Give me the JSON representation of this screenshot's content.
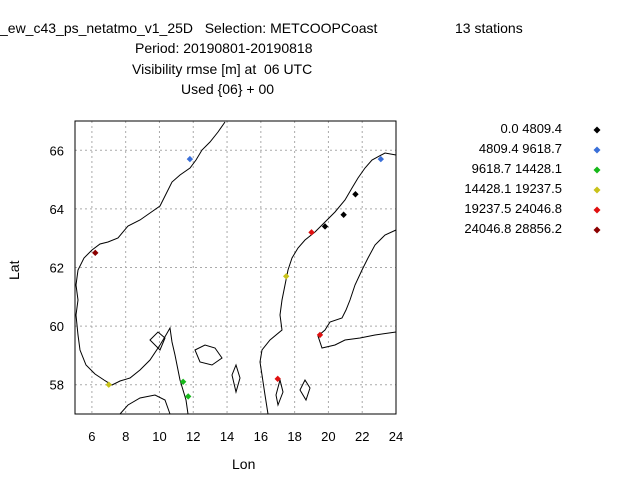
{
  "title": {
    "line1_left": "_ew_c43_ps_netatmo_v1_25D   Selection: METCOOPCoast",
    "line1_right": "13 stations",
    "line2": "Period: 20190801-20190818",
    "line3": "Visibility rmse [m] at  06 UTC",
    "line4": "Used {06} + 00"
  },
  "axes": {
    "xlabel": "Lon",
    "ylabel": "Lat",
    "xticks": [
      "6",
      "8",
      "10",
      "12",
      "14",
      "16",
      "18",
      "20",
      "22",
      "24"
    ],
    "yticks": [
      "58",
      "60",
      "62",
      "64",
      "66"
    ]
  },
  "legend": [
    {
      "label": "0.0 4809.4",
      "color": "#000000"
    },
    {
      "label": "4809.4 9618.7",
      "color": "#3a6fd8"
    },
    {
      "label": "9618.7 14428.1",
      "color": "#16b81a"
    },
    {
      "label": "14428.1 19237.5",
      "color": "#c8c21a"
    },
    {
      "label": "19237.5 24046.8",
      "color": "#e01010"
    },
    {
      "label": "24046.8 28856.2",
      "color": "#8b0000"
    }
  ],
  "chart_data": {
    "type": "scatter",
    "xlim": [
      5,
      24
    ],
    "ylim": [
      57,
      67
    ],
    "grid": true,
    "legend_position": "right",
    "points": [
      {
        "lon": 11.8,
        "lat": 65.7,
        "bin": 1
      },
      {
        "lon": 23.1,
        "lat": 65.7,
        "bin": 1
      },
      {
        "lon": 21.6,
        "lat": 64.5,
        "bin": 0
      },
      {
        "lon": 20.9,
        "lat": 63.8,
        "bin": 0
      },
      {
        "lon": 19.8,
        "lat": 63.4,
        "bin": 0
      },
      {
        "lon": 19.0,
        "lat": 63.2,
        "bin": 4
      },
      {
        "lon": 6.2,
        "lat": 62.5,
        "bin": 5
      },
      {
        "lon": 17.5,
        "lat": 61.7,
        "bin": 3
      },
      {
        "lon": 19.5,
        "lat": 59.7,
        "bin": 4
      },
      {
        "lon": 17.0,
        "lat": 58.2,
        "bin": 4
      },
      {
        "lon": 7.0,
        "lat": 58.0,
        "bin": 3
      },
      {
        "lon": 11.4,
        "lat": 58.1,
        "bin": 2
      },
      {
        "lon": 11.7,
        "lat": 57.6,
        "bin": 2
      }
    ]
  }
}
